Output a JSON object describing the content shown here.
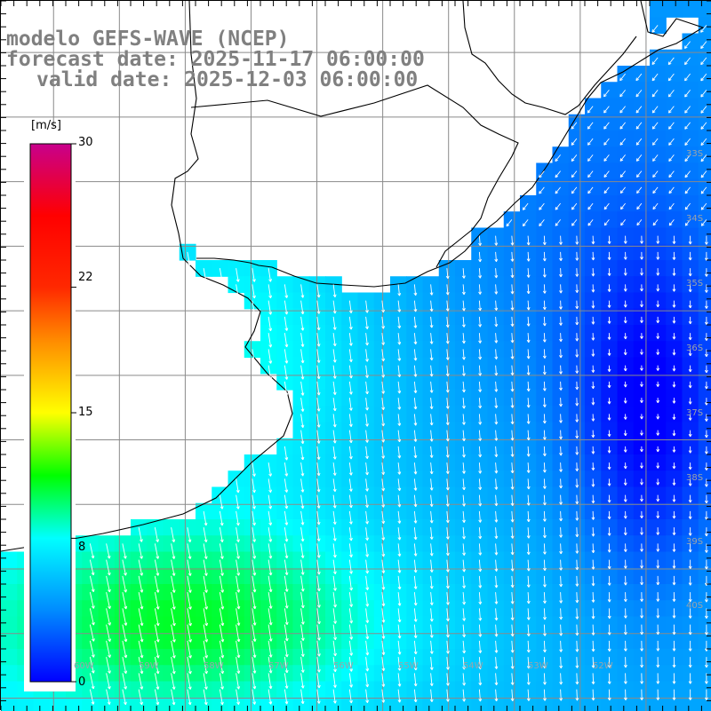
{
  "titles": {
    "model": "modelo GEFS-WAVE (NCEP)",
    "forecast": "forecast date: 2025-11-17 06:00:00",
    "valid": "valid date: 2025-12-03 06:00:00"
  },
  "colorbar": {
    "unit": "[m/s]",
    "ticks": [
      "30",
      "22",
      "15",
      "8",
      "0"
    ],
    "tick_values": [
      30,
      22,
      15,
      8,
      0
    ],
    "range": [
      0,
      30
    ]
  },
  "lat_labels": [
    "33S",
    "34S",
    "35S",
    "36S",
    "37S",
    "38S",
    "39S",
    "40S"
  ],
  "lon_labels": [
    "60W",
    "59W",
    "58W",
    "57W",
    "56W",
    "55W",
    "54W",
    "53W",
    "52W"
  ],
  "colors": {
    "land": "#ffffff",
    "grid": "#8a8a8a",
    "coast": "#000000",
    "arrow": "#ffffff",
    "title": "#808080"
  },
  "map": {
    "lon_range": [
      -60.8,
      -50.0
    ],
    "lat_range": [
      -41.2,
      -30.2
    ],
    "grid_lon": [
      -60,
      -59,
      -58,
      -57,
      -56,
      -55,
      -54,
      -53,
      -52,
      -51
    ],
    "grid_lat": [
      -31,
      -32,
      -33,
      -34,
      -35,
      -36,
      -37,
      -38,
      -39,
      -40,
      -41
    ]
  }
}
